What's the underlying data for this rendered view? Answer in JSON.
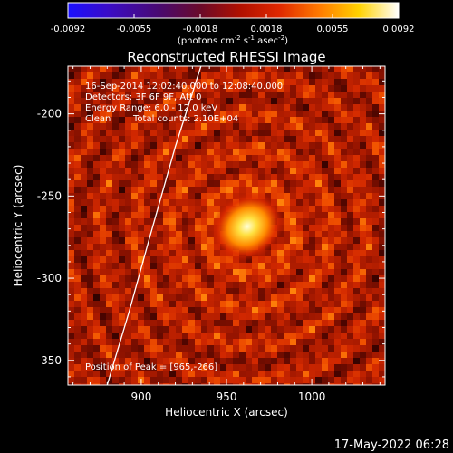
{
  "chart_data": {
    "type": "heatmap",
    "title": "Reconstructed RHESSI Image",
    "xlabel": "Heliocentric X (arcsec)",
    "ylabel": "Heliocentric Y (arcsec)",
    "xlim": [
      857,
      1043
    ],
    "ylim": [
      -365,
      -171
    ],
    "xticks": [
      900,
      950,
      1000
    ],
    "yticks": [
      -200,
      -250,
      -300,
      -350
    ],
    "grid": false,
    "colormap": "rainbow (purple-red-yellow-white)",
    "colorbar": {
      "position": "top",
      "range": [
        -0.0092,
        0.0092
      ],
      "ticks": [
        "-0.0092",
        "-0.0055",
        "-0.0018",
        "0.0018",
        "0.0055",
        "0.0092"
      ],
      "units_label": "(photons cm",
      "units_exp1": "-2",
      "units_mid": " s",
      "units_exp2": "-1",
      "units_mid2": " asec",
      "units_exp3": "-2",
      "units_end": ")"
    },
    "peak": {
      "x": 965,
      "y": -266
    },
    "limb_curve": [
      {
        "x": 935,
        "y": -171
      },
      {
        "x": 920,
        "y": -220
      },
      {
        "x": 905,
        "y": -275
      },
      {
        "x": 893,
        "y": -320
      },
      {
        "x": 880,
        "y": -365
      }
    ]
  },
  "annotations": {
    "line1": "16-Sep-2014 12:02:40.000 to 12:08:40.000",
    "line2": "Detectors: 3F 6F 9F, Att 0",
    "line3": "Energy Range: 6.0 - 12.0 keV",
    "line4a": "Clean",
    "line4b": "Total counts: 2.10E+04",
    "peak_label": "Position of Peak = [965,-266]"
  },
  "timestamp": "17-May-2022 06:28",
  "colors": {
    "background": "#000000",
    "foreground": "#ffffff",
    "map_base": "#8a1400"
  }
}
